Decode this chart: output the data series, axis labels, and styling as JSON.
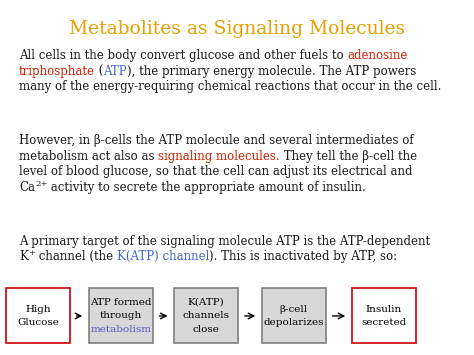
{
  "title": "Metabolites as Signaling Molecules",
  "title_color": "#E8A000",
  "bg_color": "#FFFFFF",
  "boxes": [
    {
      "label": "High\nGlucose",
      "border_color": "#CC0000",
      "bg_color": "#FFFFFF",
      "text_color": "#000000",
      "highlight": null
    },
    {
      "label_lines": [
        "ATP formed",
        "through",
        "metabolism"
      ],
      "border_color": "#808080",
      "bg_color": "#D8D8D8",
      "text_color": "#000000",
      "highlight": "metabolism",
      "highlight_color": "#5555CC"
    },
    {
      "label": "K(ATP)\nchannels\nclose",
      "border_color": "#808080",
      "bg_color": "#D8D8D8",
      "text_color": "#000000",
      "highlight": null
    },
    {
      "label": "β-cell\ndepolarizes",
      "border_color": "#808080",
      "bg_color": "#D8D8D8",
      "text_color": "#000000",
      "highlight": null
    },
    {
      "label": "Insulin\nsecreted",
      "border_color": "#CC0000",
      "bg_color": "#FFFFFF",
      "text_color": "#000000",
      "highlight": null
    }
  ]
}
